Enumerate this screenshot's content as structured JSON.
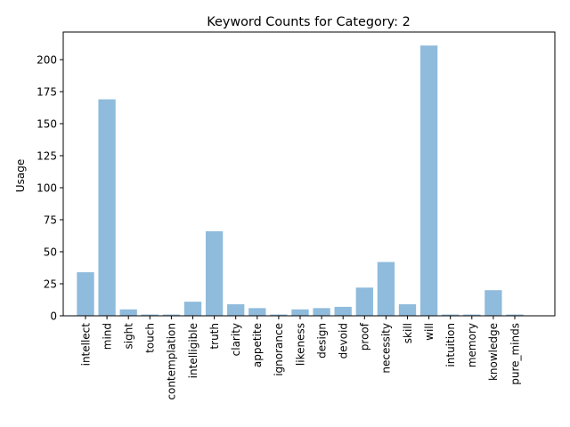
{
  "chart_data": {
    "type": "bar",
    "title": "Keyword Counts for Category: 2",
    "xlabel": "",
    "ylabel": "Usage",
    "categories": [
      "intellect",
      "mind",
      "sight",
      "touch",
      "contemplation",
      "intelligible",
      "truth",
      "clarity",
      "appetite",
      "ignorance",
      "likeness",
      "design",
      "devoid",
      "proof",
      "necessity",
      "skill",
      "will",
      "intuition",
      "memory",
      "knowledge",
      "pure_minds"
    ],
    "values": [
      34,
      169,
      5,
      1,
      1,
      11,
      66,
      9,
      6,
      1,
      5,
      6,
      7,
      22,
      42,
      9,
      211,
      1,
      1,
      20,
      1
    ],
    "ylim": [
      0,
      221.55
    ],
    "yticks": [
      0,
      25,
      50,
      75,
      100,
      125,
      150,
      175,
      200
    ],
    "bar_color": "#8fbbdc",
    "grid": false,
    "legend": "none"
  }
}
